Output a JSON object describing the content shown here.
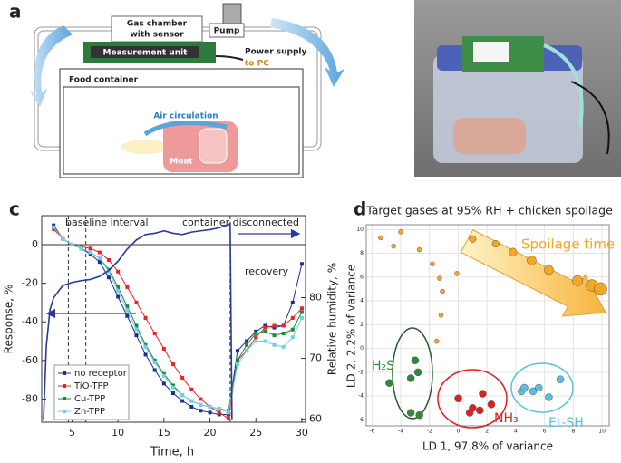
{
  "panel_labels": [
    "a",
    "b",
    "c",
    "d"
  ],
  "diagram": {
    "gas_chamber": [
      "Gas chamber",
      "with sensor"
    ],
    "pump": "Pump",
    "measurement_unit": "Measurement unit",
    "power_supply": "Power supply",
    "to_pc": "to PC",
    "food_container": "Food container",
    "air_circulation": "Air circulation",
    "meat": "Meat"
  },
  "chart_data": [
    {
      "type": "line",
      "annotations": [
        "baseline interval",
        "container disconnected",
        "recovery"
      ],
      "xlabel": "Time, h",
      "ylabel": "Response, %",
      "y2label": "Relative humidity, %",
      "xlim": [
        1.7,
        30.4
      ],
      "ylim": [
        -92,
        15
      ],
      "y2lim": [
        59.5,
        93.5
      ],
      "xticks": [
        5,
        10,
        15,
        20,
        25,
        30
      ],
      "yticks": [
        -80,
        -60,
        -40,
        -20,
        0
      ],
      "y2ticks": [
        60,
        70,
        80
      ],
      "vlines": [
        4.6,
        6.5,
        22.2
      ],
      "hline": 0,
      "legend": "lower left",
      "x": [
        3,
        4,
        5,
        6,
        7,
        8,
        9,
        10,
        11,
        12,
        13,
        14,
        15,
        16,
        17,
        18,
        19,
        20,
        21,
        22,
        23,
        24,
        25,
        26,
        27,
        28,
        29,
        30
      ],
      "series": [
        {
          "name": "no receptor",
          "color": "#1f2f8f",
          "values": [
            10,
            3,
            0,
            -2,
            -5,
            -9,
            -17,
            -27,
            -37,
            -47,
            -57,
            -65,
            -72,
            -77,
            -81,
            -84,
            -86,
            -87,
            -88,
            -88,
            -55,
            -50,
            -45,
            -42,
            -43,
            -42,
            -30,
            -10
          ]
        },
        {
          "name": "TiO-TPP",
          "color": "#e8242a",
          "values": [
            8,
            3,
            0,
            -1,
            -2,
            -4,
            -8,
            -14,
            -22,
            -30,
            -38,
            -46,
            -54,
            -62,
            -69,
            -75,
            -80,
            -84,
            -87,
            -90,
            -60,
            -55,
            -48,
            -43,
            -42,
            -42,
            -38,
            -33
          ]
        },
        {
          "name": "Cu-TPP",
          "color": "#1a8a3a",
          "values": [
            9,
            3,
            0,
            -2,
            -4,
            -7,
            -13,
            -22,
            -32,
            -42,
            -52,
            -60,
            -67,
            -73,
            -78,
            -81,
            -83,
            -84,
            -85,
            -86,
            -60,
            -52,
            -46,
            -45,
            -47,
            -46,
            -44,
            -35
          ]
        },
        {
          "name": "Zn-TPP",
          "color": "#6fd0e8",
          "values": [
            9,
            3,
            0,
            -2,
            -4,
            -7,
            -14,
            -24,
            -34,
            -44,
            -53,
            -61,
            -68,
            -74,
            -78,
            -81,
            -83,
            -84,
            -85,
            -87,
            -62,
            -55,
            -50,
            -50,
            -52,
            -53,
            -48,
            -38
          ]
        },
        {
          "color": "#2a3a9a",
          "axis": "y2",
          "x": [
            1.9,
            2.2,
            2.6,
            3,
            4,
            5,
            6,
            7,
            8,
            9,
            10,
            11,
            12,
            13,
            14,
            15,
            16,
            17,
            18,
            19,
            20,
            21,
            22,
            22.2,
            22.4
          ],
          "values": [
            60,
            72,
            78,
            80,
            82,
            82.5,
            82.8,
            83,
            83.5,
            84.5,
            86,
            88,
            89.5,
            90.4,
            90.6,
            91,
            90.6,
            90.4,
            90.8,
            91,
            91.2,
            91.5,
            92,
            92.2,
            60
          ]
        }
      ]
    },
    {
      "type": "scatter",
      "title": "Target gases at 95% RH + chicken spoilage",
      "xlabel": "LD 1, 97.8% of variance",
      "ylabel": "LD 2, 2.2% of variance",
      "xlim": [
        -6.4,
        10.5
      ],
      "ylim": [
        -6.5,
        10.4
      ],
      "xticks": [
        -6,
        -4,
        -2,
        0,
        2,
        4,
        6,
        8,
        10
      ],
      "yticks": [
        -6,
        -4,
        -2,
        0,
        2,
        4,
        6,
        8,
        10
      ],
      "grid": true,
      "series": [
        {
          "name": "Spoilage time",
          "color": "#f5a623",
          "x": [
            -5.4,
            -4.5,
            -4,
            -2.7,
            -1.8,
            -1.3,
            -1.1,
            -0.1,
            -1.2,
            -1.5,
            1,
            2.6,
            3.8,
            5.1,
            6.3,
            8.3,
            9.3,
            9.9
          ],
          "values": [
            9.3,
            8.6,
            9.8,
            8.3,
            7.1,
            5.9,
            4.8,
            6.3,
            2.8,
            0.6,
            9.2,
            8.8,
            8.1,
            7.4,
            6.6,
            5.7,
            5.3,
            5.0
          ],
          "sizes": [
            1,
            1,
            1,
            1,
            1,
            1,
            1,
            1,
            1,
            1,
            2,
            2,
            2.5,
            3,
            3,
            3.5,
            4,
            4.5
          ]
        },
        {
          "name": "H₂S",
          "color": "#2e8b3a",
          "x": [
            -4.8,
            -3.0,
            -2.8,
            -3.3,
            -3.3,
            -2.7
          ],
          "values": [
            -2.9,
            -1.0,
            -2.0,
            -2.5,
            -5.4,
            -5.6
          ]
        },
        {
          "name": "NH₃",
          "color": "#e02020",
          "x": [
            0,
            1.0,
            1.5,
            2.3,
            0.8,
            1.7
          ],
          "values": [
            -4.2,
            -5.0,
            -5.2,
            -4.7,
            -5.4,
            -3.8
          ]
        },
        {
          "name": "Et-SH",
          "color": "#5bc0de",
          "x": [
            4.4,
            5.2,
            5.6,
            6.3,
            7.1,
            4.6
          ],
          "values": [
            -3.6,
            -3.6,
            -3.3,
            -4.1,
            -2.6,
            -3.3
          ]
        }
      ]
    }
  ]
}
